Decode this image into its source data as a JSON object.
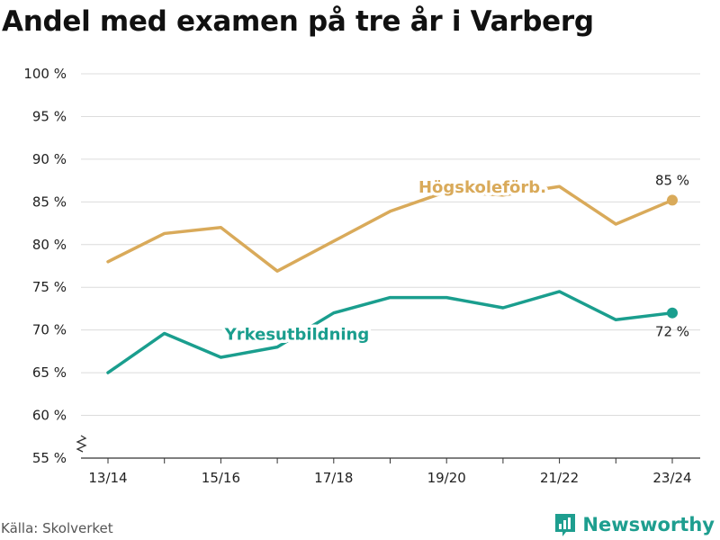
{
  "title": "Andel med examen på tre år i Varberg",
  "source": "Källa: Skolverket",
  "brand": {
    "name": "Newsworthy",
    "icon": "bar-chart-logo-icon",
    "color": "#1e9e8f"
  },
  "chart_data": {
    "type": "line",
    "title": "Andel med examen på tre år i Varberg",
    "xlabel": "",
    "ylabel": "",
    "x": [
      "13/14",
      "14/15",
      "15/16",
      "16/17",
      "17/18",
      "18/19",
      "19/20",
      "20/21",
      "21/22",
      "22/23",
      "23/24"
    ],
    "x_tick_labels": [
      "13/14",
      "",
      "15/16",
      "",
      "17/18",
      "",
      "19/20",
      "",
      "21/22",
      "",
      "23/24"
    ],
    "ylim": [
      55,
      100
    ],
    "y_ticks": [
      55,
      60,
      65,
      70,
      75,
      80,
      85,
      90,
      95,
      100
    ],
    "y_tick_labels": [
      "55 %",
      "60 %",
      "65 %",
      "70 %",
      "75 %",
      "80 %",
      "85 %",
      "90 %",
      "95 %",
      "100 %"
    ],
    "y_axis_break": true,
    "grid": true,
    "series": [
      {
        "name": "Högskoleförb.",
        "color": "#d9aa5a",
        "values": [
          78.0,
          81.3,
          82.0,
          76.9,
          80.4,
          83.9,
          86.2,
          85.8,
          86.8,
          82.4,
          85.2
        ],
        "end_label": "85 %"
      },
      {
        "name": "Yrkesutbildning",
        "color": "#1a9e8e",
        "values": [
          65.0,
          69.6,
          66.8,
          68.0,
          72.0,
          73.8,
          73.8,
          72.6,
          74.5,
          71.2,
          72.0
        ],
        "end_label": "72 %"
      }
    ]
  }
}
